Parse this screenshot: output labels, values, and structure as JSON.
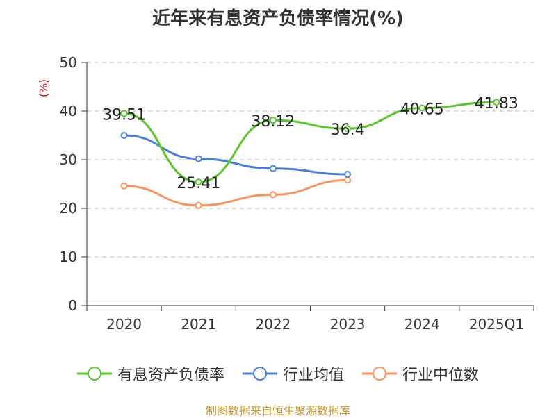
{
  "chart_data": {
    "type": "line",
    "title": "近年来有息资产负债率情况(%)",
    "ylabel": "(%)",
    "xlabel": "",
    "categories": [
      "2020",
      "2021",
      "2022",
      "2023",
      "2024",
      "2025Q1"
    ],
    "ylim": [
      0,
      50
    ],
    "yticks": [
      0,
      10,
      20,
      30,
      40,
      50
    ],
    "grid": true,
    "legend_position": "bottom",
    "series": [
      {
        "name": "有息资产负债率",
        "color": "#5ac62b",
        "values": [
          39.51,
          25.41,
          38.12,
          36.4,
          40.65,
          41.83
        ],
        "labels": [
          "39.51",
          "25.41",
          "38.12",
          "36.4",
          "40.65",
          "41.83"
        ]
      },
      {
        "name": "行业均值",
        "color": "#4a7fd8",
        "values": [
          35.0,
          30.2,
          28.2,
          27.0,
          null,
          null
        ]
      },
      {
        "name": "行业中位数",
        "color": "#f4945f",
        "values": [
          24.6,
          20.6,
          22.8,
          25.8,
          null,
          null
        ]
      }
    ]
  },
  "footer": {
    "source": "制图数据来自恒生聚源数据库"
  }
}
